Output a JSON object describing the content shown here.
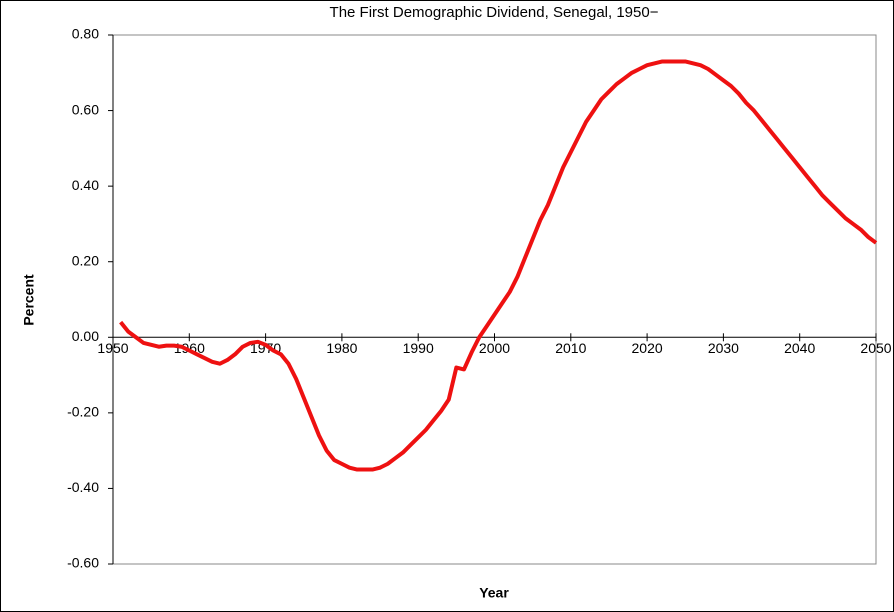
{
  "chart_data": {
    "type": "line",
    "title": "The First Demographic Dividend, Senegal, 1950−",
    "x_label": "Year",
    "y_label": "Percent",
    "x": [
      1951,
      1952,
      1953,
      1954,
      1955,
      1956,
      1957,
      1958,
      1959,
      1960,
      1961,
      1962,
      1963,
      1964,
      1965,
      1966,
      1967,
      1968,
      1969,
      1970,
      1971,
      1972,
      1973,
      1974,
      1975,
      1976,
      1977,
      1978,
      1979,
      1980,
      1981,
      1982,
      1983,
      1984,
      1985,
      1986,
      1987,
      1988,
      1989,
      1990,
      1991,
      1992,
      1993,
      1994,
      1995,
      1996,
      1997,
      1998,
      1999,
      2000,
      2001,
      2002,
      2003,
      2004,
      2005,
      2006,
      2007,
      2008,
      2009,
      2010,
      2011,
      2012,
      2013,
      2014,
      2015,
      2016,
      2017,
      2018,
      2019,
      2020,
      2021,
      2022,
      2023,
      2024,
      2025,
      2026,
      2027,
      2028,
      2029,
      2030,
      2031,
      2032,
      2033,
      2034,
      2035,
      2036,
      2037,
      2038,
      2039,
      2040,
      2041,
      2042,
      2043,
      2044,
      2045,
      2046,
      2047,
      2048,
      2049,
      2050
    ],
    "series": [
      {
        "color": "#ee1111",
        "values": [
          0.04,
          0.015,
          0.0,
          -0.015,
          -0.02,
          -0.025,
          -0.022,
          -0.022,
          -0.025,
          -0.035,
          -0.045,
          -0.055,
          -0.065,
          -0.07,
          -0.06,
          -0.045,
          -0.025,
          -0.015,
          -0.012,
          -0.02,
          -0.035,
          -0.045,
          -0.07,
          -0.11,
          -0.16,
          -0.21,
          -0.26,
          -0.3,
          -0.325,
          -0.335,
          -0.345,
          -0.35,
          -0.35,
          -0.35,
          -0.345,
          -0.335,
          -0.32,
          -0.305,
          -0.285,
          -0.265,
          -0.245,
          -0.22,
          -0.195,
          -0.165,
          -0.08,
          -0.085,
          -0.04,
          0.0,
          0.03,
          0.06,
          0.09,
          0.12,
          0.16,
          0.21,
          0.26,
          0.31,
          0.35,
          0.4,
          0.45,
          0.49,
          0.53,
          0.57,
          0.6,
          0.63,
          0.65,
          0.67,
          0.685,
          0.7,
          0.71,
          0.72,
          0.725,
          0.73,
          0.73,
          0.73,
          0.73,
          0.725,
          0.72,
          0.71,
          0.695,
          0.68,
          0.665,
          0.645,
          0.62,
          0.6,
          0.575,
          0.55,
          0.525,
          0.5,
          0.475,
          0.45,
          0.425,
          0.4,
          0.375,
          0.355,
          0.335,
          0.315,
          0.3,
          0.285,
          0.265,
          0.25
        ]
      }
    ],
    "xlim": [
      1950,
      2050
    ],
    "ylim": [
      -0.6,
      0.8
    ],
    "xticks": [
      1950,
      1960,
      1970,
      1980,
      1990,
      2000,
      2010,
      2020,
      2030,
      2040,
      2050
    ],
    "yticks": [
      {
        "value": -0.6,
        "label": "-0.60"
      },
      {
        "value": -0.4,
        "label": "-0.40"
      },
      {
        "value": -0.2,
        "label": "-0.20"
      },
      {
        "value": 0,
        "label": "0.00"
      },
      {
        "value": 0.2,
        "label": "0.20"
      },
      {
        "value": 0.4,
        "label": "0.40"
      },
      {
        "value": 0.6,
        "label": "0.60"
      },
      {
        "value": 0.8,
        "label": "0.80"
      }
    ]
  }
}
